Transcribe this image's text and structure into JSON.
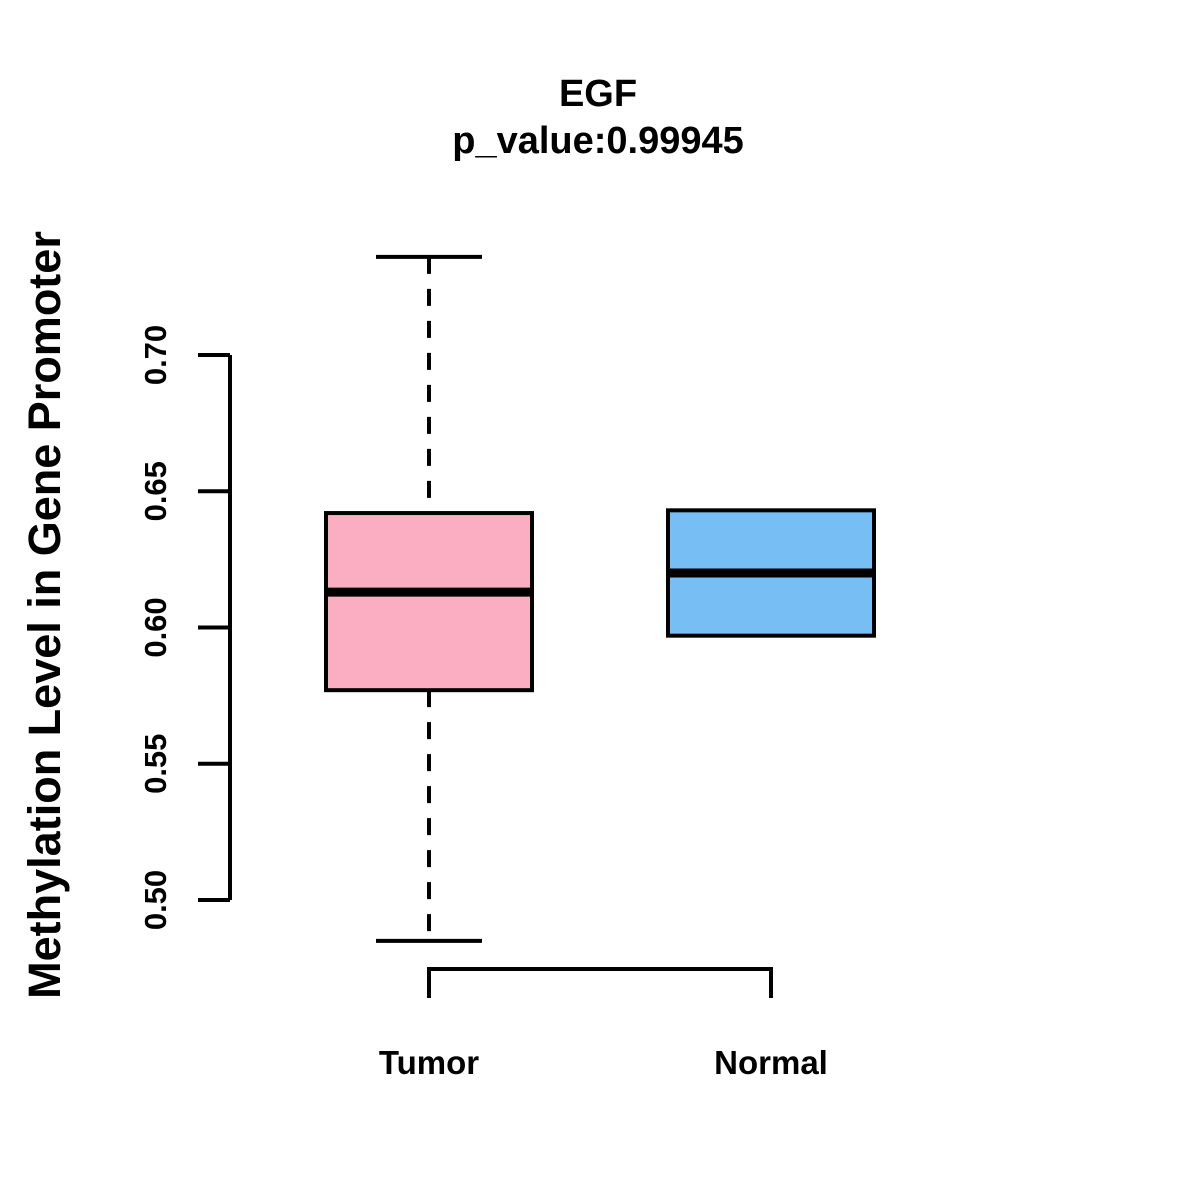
{
  "figure": {
    "background": "#FFFFFF",
    "axis_color": "#000000"
  },
  "chart_data": {
    "type": "boxplot",
    "title": "EGF",
    "subtitle": "p_value:0.99945",
    "xlabel": "",
    "ylabel": "Methylation Level in Gene Promoter",
    "categories": [
      "Tumor",
      "Normal"
    ],
    "ytick_labels": [
      "0.50",
      "0.55",
      "0.60",
      "0.65",
      "0.70"
    ],
    "yticks": [
      0.5,
      0.55,
      0.6,
      0.65,
      0.7
    ],
    "axis_range": [
      0.5,
      0.7
    ],
    "ylim": [
      0.48,
      0.74
    ],
    "grid": false,
    "legend": "none",
    "orientation": "vertical",
    "series": [
      {
        "name": "Tumor",
        "color": "#FBAEC2",
        "whisker_low": 0.485,
        "q1": 0.577,
        "median": 0.613,
        "q3": 0.642,
        "whisker_high": 0.736
      },
      {
        "name": "Normal",
        "color": "#76BEF3",
        "whisker_low": 0.597,
        "q1": 0.597,
        "median": 0.62,
        "q3": 0.643,
        "whisker_high": 0.643
      }
    ]
  }
}
